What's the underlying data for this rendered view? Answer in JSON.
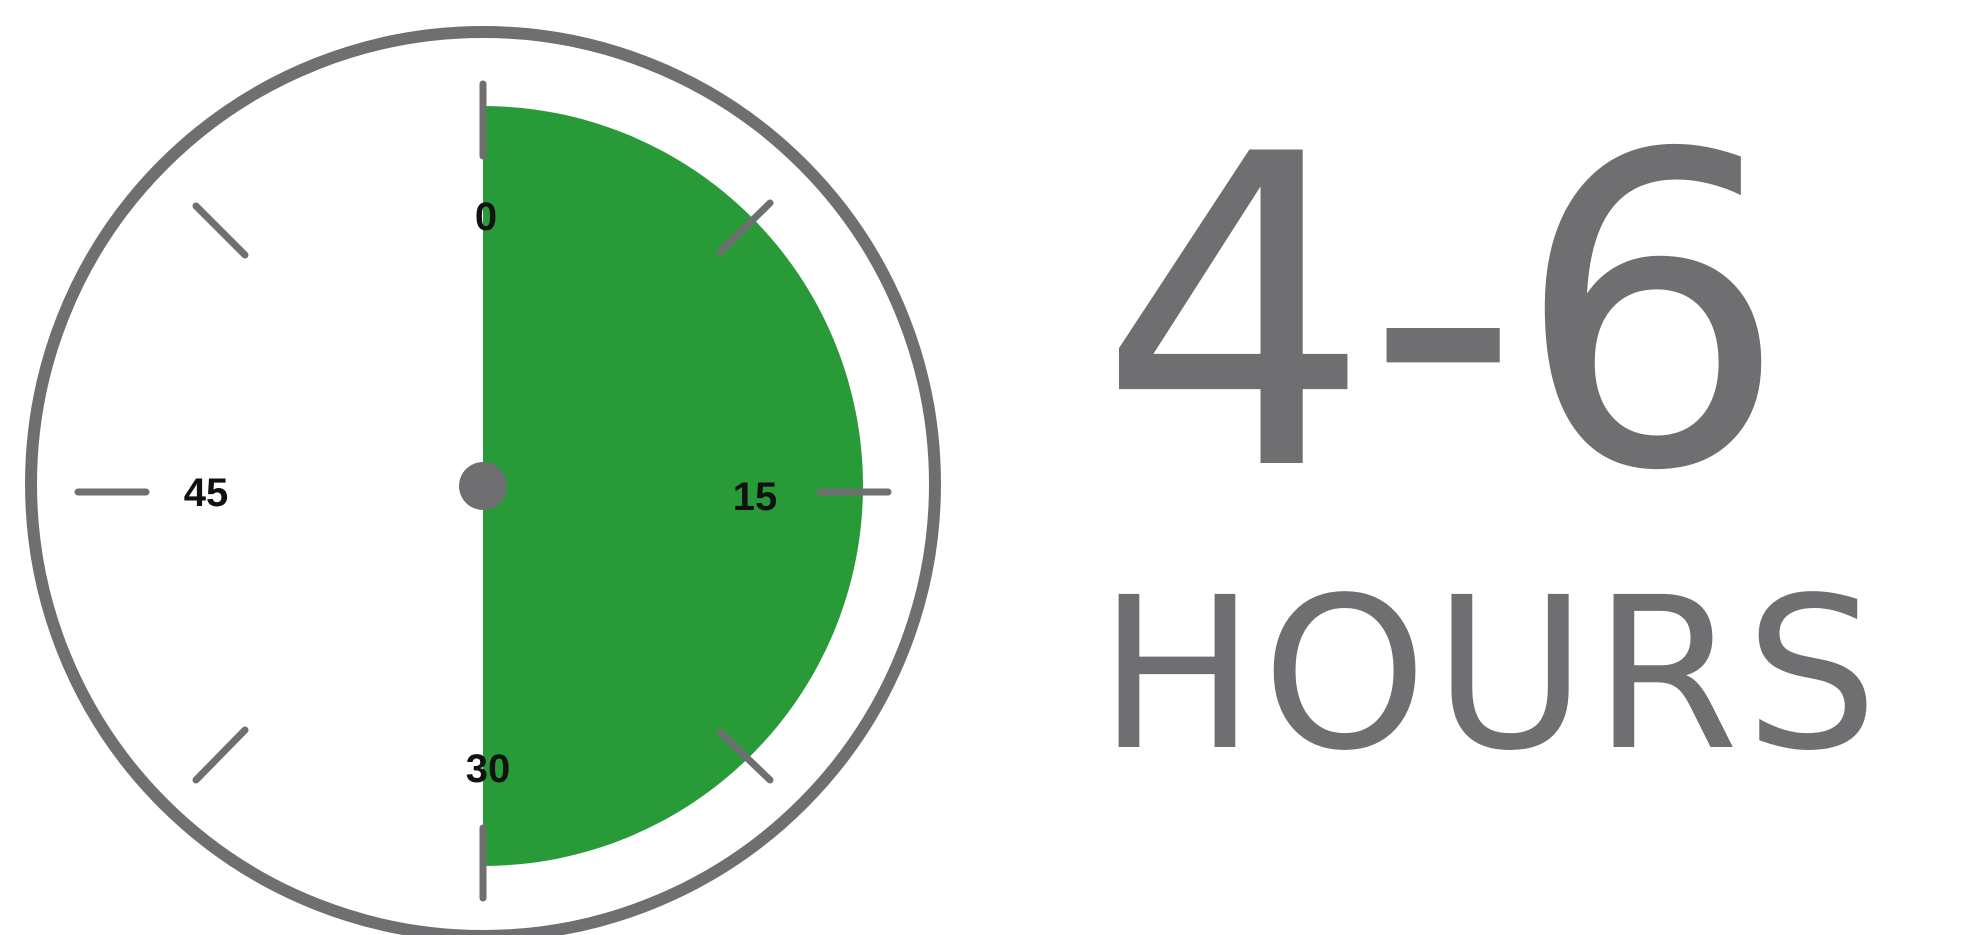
{
  "timer": {
    "dial_labels": [
      "0",
      "15",
      "30",
      "45"
    ],
    "filled_fraction": 0.5,
    "fill_color": "#289b38",
    "ring_color": "#6f6f71"
  },
  "duration": {
    "range": "4-6",
    "unit": "HOURS"
  }
}
